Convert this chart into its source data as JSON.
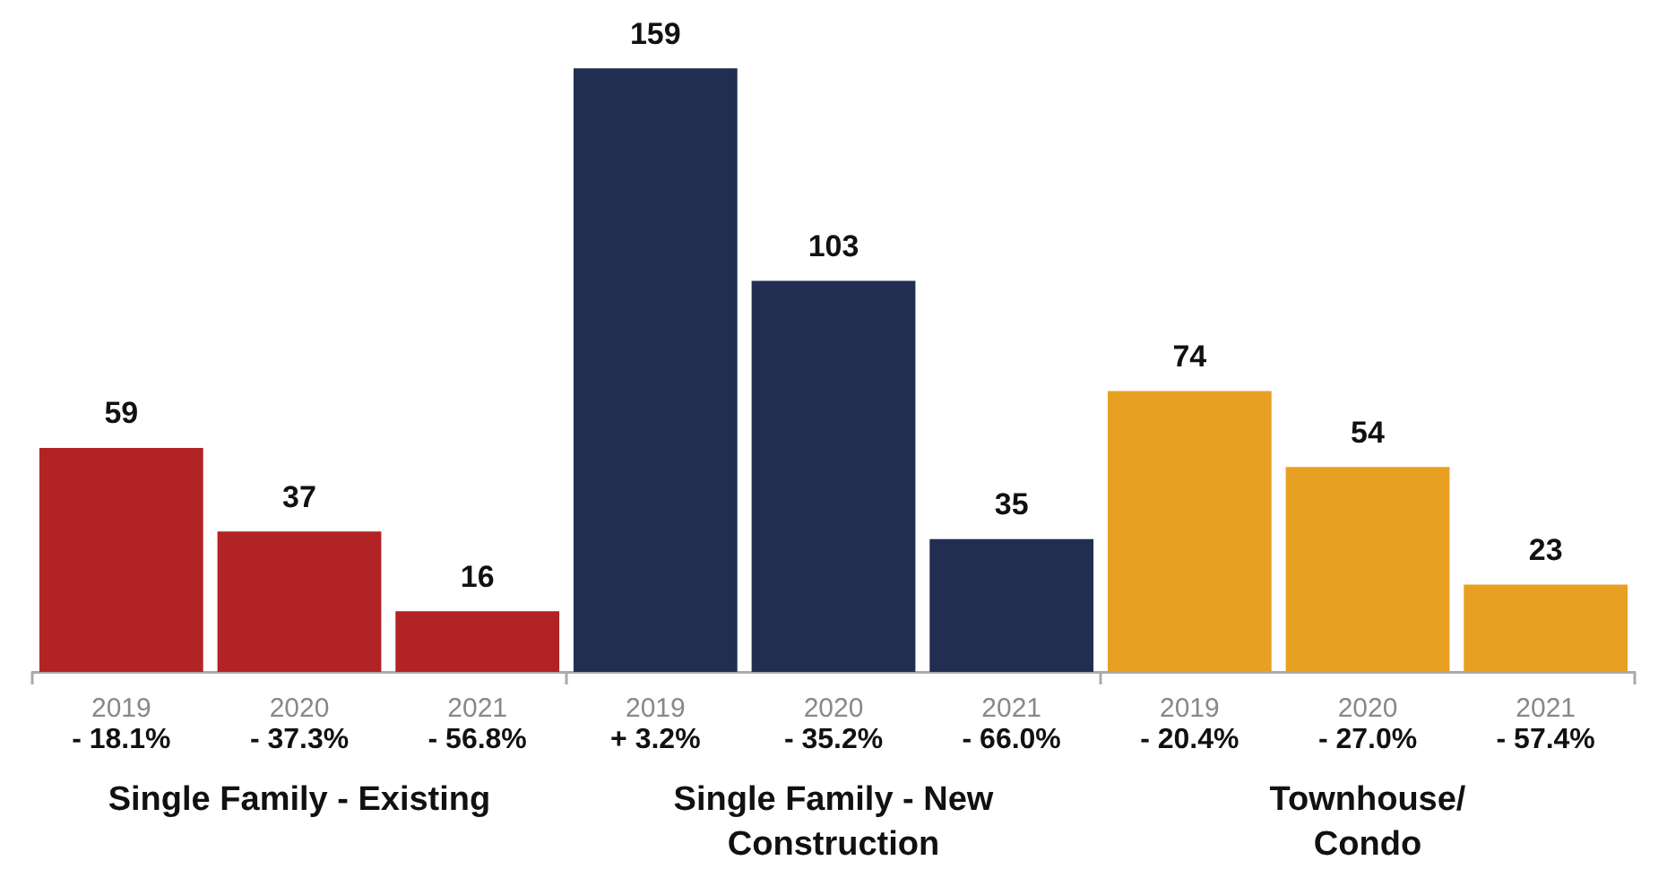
{
  "chart_data": {
    "type": "bar",
    "categories": [
      "2019",
      "2020",
      "2021",
      "2019",
      "2020",
      "2021",
      "2019",
      "2020",
      "2021"
    ],
    "values": [
      59,
      37,
      16,
      159,
      103,
      35,
      74,
      54,
      23
    ],
    "colors": [
      "#b22325",
      "#b22325",
      "#b22325",
      "#222d52",
      "#222d52",
      "#222d52",
      "#e8a023",
      "#e8a023",
      "#e8a023"
    ],
    "data_labels": true,
    "annotations": [
      "- 18.1%",
      "- 37.3%",
      "- 56.8%",
      "+ 3.2%",
      "- 35.2%",
      "- 66.0%",
      "- 20.4%",
      "- 27.0%",
      "- 57.4%",
      "Single Family - Existing",
      "Single Family - New Construction",
      "Townhouse/\nCondo"
    ]
  }
}
